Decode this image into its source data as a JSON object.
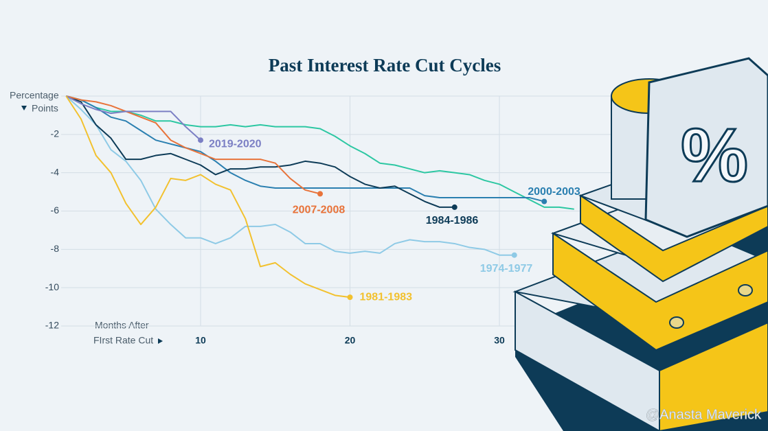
{
  "chart_data": {
    "type": "line",
    "title": "Past Interest Rate Cut Cycles",
    "y_label": [
      "Percentage",
      "Points"
    ],
    "x_label": [
      "Months After",
      "FIrst Rate Cut"
    ],
    "watermark": "@Anasta Maverick",
    "x": [
      1,
      2,
      3,
      4,
      5,
      6,
      7,
      8,
      9,
      10,
      11,
      12,
      13,
      14,
      15,
      16,
      17,
      18,
      19,
      20,
      21,
      22,
      23,
      24,
      25,
      26,
      27,
      28,
      29,
      30,
      31,
      32,
      33,
      34,
      35
    ],
    "xlim": [
      -0.25,
      46.75
    ],
    "xticks": [
      10,
      20,
      30
    ],
    "ylim": [
      -12,
      0
    ],
    "yticks": [
      -2,
      -4,
      -6,
      -8,
      -10,
      -12
    ],
    "grid": true,
    "series": [
      {
        "color": "#2cc7a2",
        "values": [
          0,
          -0.2,
          -0.6,
          -0.8,
          -0.8,
          -1.0,
          -1.3,
          -1.3,
          -1.5,
          -1.6,
          -1.6,
          -1.5,
          -1.6,
          -1.5,
          -1.6,
          -1.6,
          -1.6,
          -1.7,
          -2.1,
          -2.6,
          -3.0,
          -3.5,
          -3.6,
          -3.8,
          -4.0,
          -3.9,
          -4.0,
          -4.1,
          -4.4,
          -4.6,
          -5.0,
          -5.4,
          -5.8,
          -5.8,
          -5.9
        ]
      },
      {
        "name": "1974-1977",
        "color": "#8ecae6",
        "values": [
          0,
          -0.7,
          -1.5,
          -2.8,
          -3.4,
          -4.4,
          -5.9,
          -6.7,
          -7.4,
          -7.4,
          -7.7,
          -7.4,
          -6.8,
          -6.8,
          -6.7,
          -7.1,
          -7.7,
          -7.7,
          -8.1,
          -8.2,
          -8.1,
          -8.2,
          -7.7,
          -7.5,
          -7.6,
          -7.6,
          -7.7,
          -7.9,
          -8.0,
          -8.3,
          -8.3,
          null,
          null,
          null,
          null
        ]
      },
      {
        "name": "2000-2003",
        "color": "#2a7fb0",
        "values": [
          0,
          -0.2,
          -0.6,
          -1.1,
          -1.3,
          -1.8,
          -2.3,
          -2.5,
          -2.7,
          -2.9,
          -3.4,
          -4.0,
          -4.4,
          -4.7,
          -4.8,
          -4.8,
          -4.8,
          -4.8,
          -4.8,
          -4.8,
          -4.8,
          -4.8,
          -4.8,
          -4.8,
          -5.2,
          -5.3,
          -5.3,
          -5.3,
          -5.3,
          -5.3,
          -5.3,
          -5.3,
          -5.5,
          null,
          null
        ]
      },
      {
        "name": "1984-1986",
        "color": "#0d3b57",
        "values": [
          0,
          -0.3,
          -1.5,
          -2.2,
          -3.3,
          -3.3,
          -3.1,
          -3.0,
          -3.3,
          -3.6,
          -4.1,
          -3.8,
          -3.8,
          -3.7,
          -3.7,
          -3.6,
          -3.4,
          -3.5,
          -3.7,
          -4.2,
          -4.6,
          -4.8,
          -4.7,
          -5.1,
          -5.5,
          -5.8,
          -5.8,
          null,
          null,
          null,
          null,
          null,
          null,
          null,
          null
        ]
      },
      {
        "name": "2007-2008",
        "color": "#e8733a",
        "values": [
          0,
          -0.2,
          -0.3,
          -0.5,
          -0.8,
          -1.1,
          -1.4,
          -2.3,
          -2.7,
          -3.0,
          -3.3,
          -3.3,
          -3.3,
          -3.3,
          -3.5,
          -4.3,
          -4.9,
          -5.1,
          null,
          null,
          null,
          null,
          null,
          null,
          null,
          null,
          null,
          null,
          null,
          null,
          null,
          null,
          null,
          null,
          null
        ]
      },
      {
        "name": "2019-2020",
        "color": "#7b7fc4",
        "values": [
          0,
          -0.4,
          -0.7,
          -0.9,
          -0.8,
          -0.8,
          -0.8,
          -0.8,
          -1.6,
          -2.3,
          null,
          null,
          null,
          null,
          null,
          null,
          null,
          null,
          null,
          null,
          null,
          null,
          null,
          null,
          null,
          null,
          null,
          null,
          null,
          null,
          null,
          null,
          null,
          null,
          null
        ]
      },
      {
        "name": "1981-1983",
        "color": "#f2c12e",
        "values": [
          0,
          -1.2,
          -3.1,
          -4.0,
          -5.6,
          -6.7,
          -5.8,
          -4.3,
          -4.4,
          -4.1,
          -4.6,
          -4.9,
          -6.4,
          -8.9,
          -8.7,
          -9.3,
          -9.8,
          -10.1,
          -10.4,
          -10.5,
          null,
          null,
          null,
          null,
          null,
          null,
          null,
          null,
          null,
          null,
          null,
          null,
          null,
          null,
          null
        ]
      }
    ]
  }
}
